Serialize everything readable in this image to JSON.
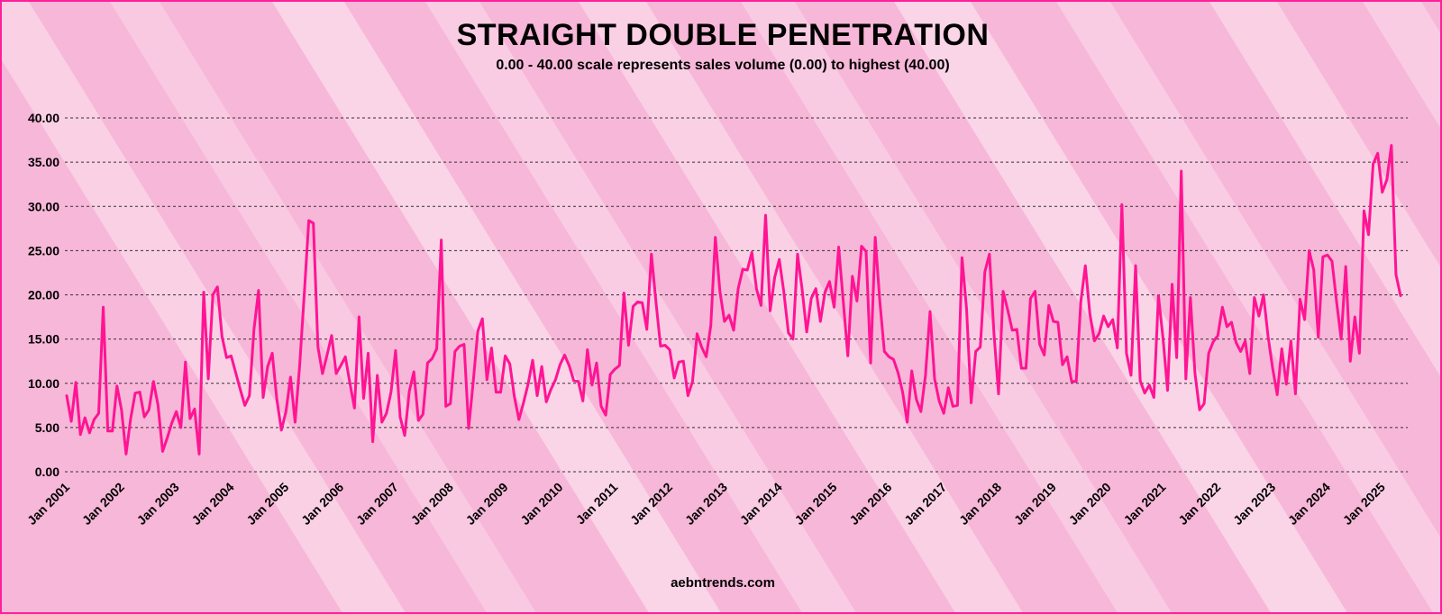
{
  "chart_data": {
    "type": "line",
    "title": "STRAIGHT DOUBLE PENETRATION",
    "subtitle": "0.00 - 40.00 scale represents sales volume (0.00) to highest (40.00)",
    "xlabel": "",
    "ylabel": "",
    "ylim": [
      0,
      40
    ],
    "yticks": [
      "0.00",
      "5.00",
      "10.00",
      "15.00",
      "20.00",
      "25.00",
      "30.00",
      "35.00",
      "40.00"
    ],
    "xticks": [
      "Jan 2001",
      "Jan 2002",
      "Jan 2003",
      "Jan 2004",
      "Jan 2005",
      "Jan 2006",
      "Jan 2007",
      "Jan 2008",
      "Jan 2009",
      "Jan 2010",
      "Jan 2011",
      "Jan 2012",
      "Jan 2013",
      "Jan 2014",
      "Jan 2015",
      "Jan 2016",
      "Jan 2017",
      "Jan 2018",
      "Jan 2019",
      "Jan 2020",
      "Jan 2021",
      "Jan 2022",
      "Jan 2023",
      "Jan 2024",
      "Jan 2025"
    ],
    "grid": "horizontal dashed",
    "line_color": "#ff1493",
    "series": [
      {
        "start": "Jan 2001",
        "frequency": "monthly",
        "values": [
          8.6,
          5.7,
          10.1,
          4.2,
          6.1,
          4.4,
          5.9,
          6.6,
          18.6,
          4.6,
          4.6,
          9.7,
          7.0,
          2.0,
          6.0,
          8.9,
          9.0,
          6.2,
          7.0,
          10.2,
          7.5,
          2.3,
          3.8,
          5.5,
          6.8,
          5.0,
          12.4,
          6.0,
          7.1,
          2.0,
          20.3,
          10.5,
          20.0,
          20.9,
          15.3,
          12.9,
          13.1,
          11.2,
          9.3,
          7.5,
          8.6,
          16.1,
          20.5,
          8.4,
          11.9,
          13.4,
          8.2,
          4.7,
          6.8,
          10.7,
          5.6,
          12.0,
          20.0,
          28.4,
          28.1,
          14.1,
          11.1,
          13.2,
          15.4,
          11.1,
          12.0,
          13.0,
          10.0,
          7.2,
          17.5,
          8.3,
          13.4,
          3.4,
          10.9,
          5.6,
          6.6,
          9.0,
          13.7,
          6.2,
          4.1,
          9.1,
          11.3,
          5.8,
          6.5,
          12.3,
          12.8,
          13.9,
          26.2,
          7.4,
          7.7,
          13.6,
          14.2,
          14.4,
          4.9,
          10.2,
          15.9,
          17.3,
          10.4,
          14.0,
          9.0,
          9.0,
          13.1,
          12.2,
          8.5,
          5.9,
          7.8,
          9.9,
          12.6,
          8.6,
          11.9,
          7.9,
          9.3,
          10.4,
          12.1,
          13.2,
          12.0,
          10.3,
          10.2,
          8.0,
          13.8,
          9.8,
          12.3,
          7.4,
          6.4,
          11.0,
          11.6,
          12.0,
          20.2,
          14.3,
          18.7,
          19.2,
          19.1,
          16.1,
          24.6,
          19.2,
          14.2,
          14.3,
          13.8,
          10.6,
          12.4,
          12.5,
          8.6,
          10.2,
          15.6,
          14.1,
          13.0,
          16.5,
          26.5,
          20.4,
          17.0,
          17.7,
          16.0,
          20.7,
          22.9,
          22.8,
          24.8,
          20.7,
          18.8,
          29.0,
          18.2,
          22.0,
          24.0,
          20.3,
          15.7,
          15.0,
          24.6,
          20.6,
          15.8,
          19.6,
          20.7,
          17.0,
          20.3,
          21.5,
          18.6,
          25.4,
          19.3,
          13.1,
          22.1,
          19.3,
          25.5,
          24.9,
          12.3,
          26.5,
          19.3,
          13.6,
          13.0,
          12.7,
          11.2,
          9.0,
          5.6,
          11.4,
          8.2,
          6.8,
          10.9,
          18.1,
          10.5,
          8.0,
          6.6,
          9.5,
          7.4,
          7.5,
          24.2,
          18.4,
          7.8,
          13.6,
          14.1,
          22.6,
          24.6,
          15.6,
          8.8,
          20.4,
          18.3,
          16.0,
          16.1,
          11.7,
          11.7,
          19.6,
          20.4,
          14.4,
          13.2,
          18.8,
          17.0,
          16.9,
          12.1,
          13.0,
          10.2,
          10.2,
          19.2,
          23.3,
          17.8,
          14.8,
          15.6,
          17.6,
          16.4,
          17.2,
          14.0,
          30.2,
          13.4,
          10.9,
          23.3,
          10.3,
          8.9,
          9.8,
          8.4,
          19.9,
          15.1,
          9.2,
          21.2,
          12.9,
          34.0,
          10.5,
          19.7,
          11.1,
          7.0,
          7.7,
          13.4,
          14.7,
          15.4,
          18.6,
          16.4,
          16.9,
          14.6,
          13.6,
          14.8,
          11.1,
          19.7,
          17.6,
          20.0,
          15.3,
          11.7,
          8.7,
          13.9,
          9.9,
          14.8,
          8.8,
          19.5,
          17.2,
          25.0,
          22.8,
          15.2,
          24.3,
          24.5,
          23.8,
          19.2,
          15.0,
          23.2,
          12.5,
          17.5,
          13.4,
          29.5,
          26.8,
          34.8,
          36.0,
          31.6,
          33.0,
          36.9,
          22.3,
          19.9
        ]
      }
    ]
  },
  "footer": "aebntrends.com"
}
